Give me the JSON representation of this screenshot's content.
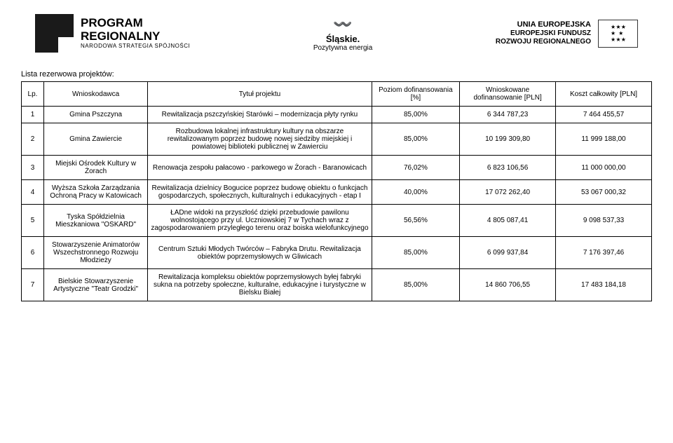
{
  "header": {
    "program": {
      "title": "PROGRAM",
      "title2": "REGIONALNY",
      "sub": "NARODOWA STRATEGIA SPÓJNOŚCI"
    },
    "slaskie": {
      "title": "Śląskie.",
      "sub": "Pozytywna energia"
    },
    "eu": {
      "title": "UNIA EUROPEJSKA",
      "sub1": "EUROPEJSKI FUNDUSZ",
      "sub2": "ROZWOJU REGIONALNEGO"
    }
  },
  "list_title": "Lista rezerwowa projektów:",
  "columns": {
    "lp": "Lp.",
    "applicant": "Wnioskodawca",
    "title": "Tytuł projektu",
    "pct": "Poziom dofinansowania [%]",
    "fin": "Wnioskowane dofinansowanie [PLN]",
    "cost": "Koszt całkowity [PLN]"
  },
  "rows": [
    {
      "lp": "1",
      "applicant": "Gmina Pszczyna",
      "title": "Rewitalizacja pszczyńskiej Starówki – modernizacja płyty rynku",
      "pct": "85,00%",
      "fin": "6 344 787,23",
      "cost": "7 464 455,57"
    },
    {
      "lp": "2",
      "applicant": "Gmina Zawiercie",
      "title": "Rozbudowa lokalnej infrastruktury kultury na obszarze rewitalizowanym poprzez budowę nowej siedziby miejskiej i powiatowej biblioteki publicznej w Zawierciu",
      "pct": "85,00%",
      "fin": "10 199 309,80",
      "cost": "11 999 188,00"
    },
    {
      "lp": "3",
      "applicant": "Miejski Ośrodek Kultury w Żorach",
      "title": "Renowacja zespołu pałacowo - parkowego w Żorach - Baranowicach",
      "pct": "76,02%",
      "fin": "6 823 106,56",
      "cost": "11 000 000,00"
    },
    {
      "lp": "4",
      "applicant": "Wyższa Szkoła Zarządzania Ochroną Pracy w Katowicach",
      "title": "Rewitalizacja dzielnicy Bogucice poprzez budowę obiektu o funkcjach gospodarczych, społecznych, kulturalnych i edukacyjnych - etap I",
      "pct": "40,00%",
      "fin": "17 072 262,40",
      "cost": "53 067 000,32"
    },
    {
      "lp": "5",
      "applicant": "Tyska Spółdzielnia Mieszkaniowa \"OSKARD\"",
      "title": "ŁADne widoki na przyszłość dzięki przebudowie pawilonu wolnostojącego przy ul. Uczniowskiej 7 w Tychach wraz z zagospodarowaniem przyległego terenu oraz boiska wielofunkcyjnego",
      "pct": "56,56%",
      "fin": "4 805 087,41",
      "cost": "9 098 537,33"
    },
    {
      "lp": "6",
      "applicant": "Stowarzyszenie Animatorów Wszechstronnego Rozwoju Młodzieży",
      "title": "Centrum Sztuki Młodych Twórców – Fabryka Drutu. Rewitalizacja obiektów poprzemysłowych w Gliwicach",
      "pct": "85,00%",
      "fin": "6 099 937,84",
      "cost": "7 176 397,46"
    },
    {
      "lp": "7",
      "applicant": "Bielskie Stowarzyszenie Artystyczne \"Teatr Grodzki\"",
      "title": "Rewitalizacja kompleksu obiektów poprzemysłowych byłej fabryki sukna na potrzeby społeczne, kulturalne, edukacyjne i turystyczne w Bielsku Białej",
      "pct": "85,00%",
      "fin": "14 860 706,55",
      "cost": "17 483 184,18"
    }
  ]
}
